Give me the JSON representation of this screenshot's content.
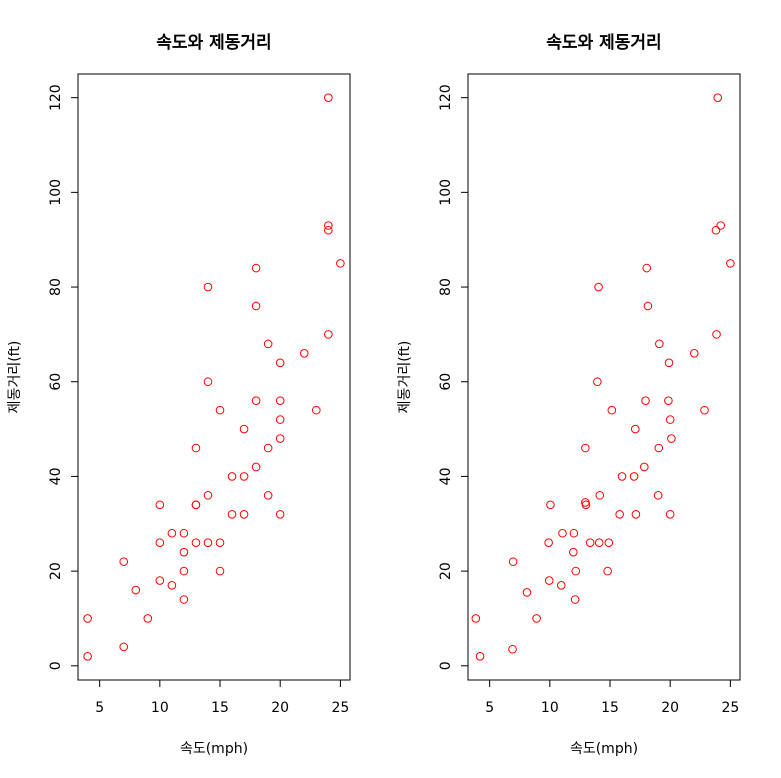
{
  "chart_data": [
    {
      "type": "scatter",
      "title": "속도와 제동거리",
      "xlabel": "속도(mph)",
      "ylabel": "제동거리(ft)",
      "xlim": [
        3.2,
        25.8
      ],
      "ylim": [
        -3,
        125
      ],
      "xticks": [
        5,
        10,
        15,
        20,
        25
      ],
      "yticks": [
        0,
        20,
        40,
        60,
        80,
        100,
        120
      ],
      "grid": false,
      "point_color": "#ff0000",
      "jitter": false,
      "series": [
        {
          "x": [
            4,
            4,
            7,
            7,
            8,
            9,
            10,
            10,
            10,
            11,
            11,
            12,
            12,
            12,
            12,
            13,
            13,
            13,
            13,
            14,
            14,
            14,
            14,
            15,
            15,
            15,
            16,
            16,
            17,
            17,
            17,
            18,
            18,
            18,
            18,
            19,
            19,
            19,
            20,
            20,
            20,
            20,
            20,
            22,
            23,
            24,
            24,
            24,
            24,
            25
          ],
          "y": [
            2,
            10,
            4,
            22,
            16,
            10,
            18,
            26,
            34,
            17,
            28,
            14,
            20,
            24,
            28,
            26,
            34,
            34,
            46,
            26,
            36,
            60,
            80,
            20,
            26,
            54,
            32,
            40,
            32,
            40,
            50,
            42,
            56,
            76,
            84,
            36,
            46,
            68,
            32,
            48,
            52,
            56,
            64,
            66,
            54,
            70,
            92,
            93,
            120,
            85
          ]
        }
      ]
    },
    {
      "type": "scatter",
      "title": "속도와 제동거리",
      "xlabel": "속도(mph)",
      "ylabel": "제동거리(ft)",
      "xlim": [
        3.2,
        25.8
      ],
      "ylim": [
        -3,
        125
      ],
      "xticks": [
        5,
        10,
        15,
        20,
        25
      ],
      "yticks": [
        0,
        20,
        40,
        60,
        80,
        100,
        120
      ],
      "grid": false,
      "point_color": "#ff0000",
      "jitter": true,
      "series": [
        {
          "x": [
            3.85,
            4.2,
            6.9,
            6.95,
            8.1,
            8.9,
            9.95,
            9.9,
            10.05,
            10.95,
            11.05,
            12.1,
            12.15,
            11.95,
            12.0,
            13.35,
            12.95,
            13.0,
            12.95,
            14.1,
            14.15,
            13.95,
            14.05,
            14.8,
            14.9,
            15.15,
            15.8,
            16.0,
            17.15,
            17.0,
            17.1,
            17.85,
            17.95,
            18.15,
            18.05,
            19.0,
            19.05,
            19.1,
            20.0,
            20.1,
            20.0,
            19.85,
            19.9,
            22.0,
            22.85,
            23.85,
            23.8,
            24.2,
            23.95,
            25.0
          ],
          "y": [
            10,
            2,
            3.5,
            22,
            15.5,
            10,
            18,
            26,
            34,
            17,
            28,
            14,
            20,
            24,
            28,
            26,
            34.5,
            34,
            46,
            26,
            36,
            60,
            80,
            20,
            26,
            54,
            32,
            40,
            32,
            40,
            50,
            42,
            56,
            76,
            84,
            36,
            46,
            68,
            32,
            48,
            52,
            56,
            64,
            66,
            54,
            70,
            92,
            93,
            120,
            85
          ]
        }
      ]
    }
  ]
}
